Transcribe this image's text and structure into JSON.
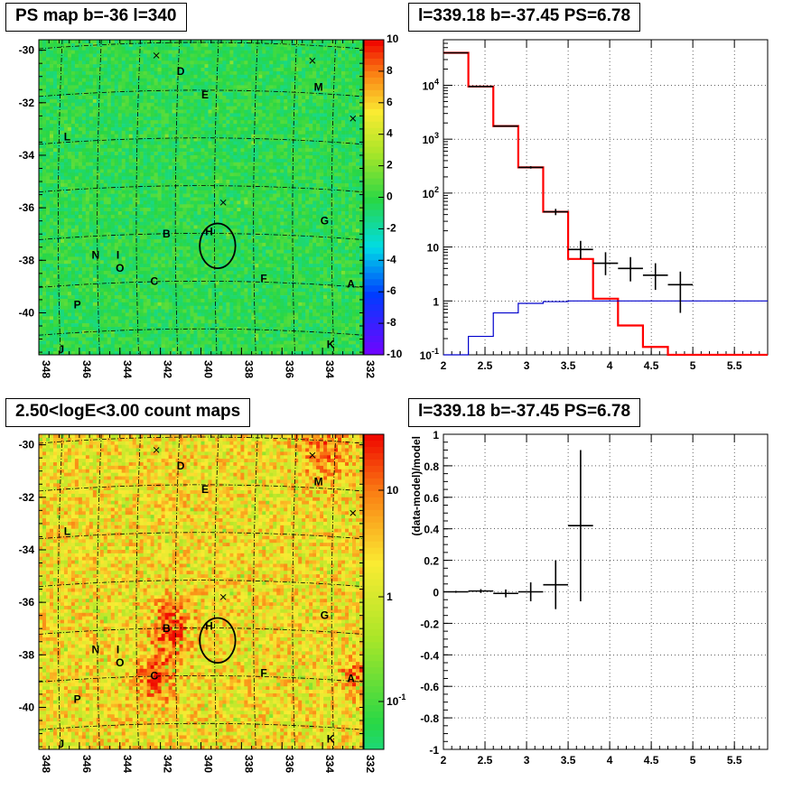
{
  "panels": {
    "top_left_title": "PS map b=-36 l=340",
    "top_right_title": "l=339.18 b=-37.45 PS=6.78",
    "bottom_left_title": "2.50<logE<3.00 count maps",
    "bottom_right_title": "l=339.18 b=-37.45 PS=6.78"
  },
  "chart_data": [
    {
      "type": "heatmap",
      "title": "PS map b=-36 l=340",
      "xlim": [
        348,
        332
      ],
      "ylim": [
        -41.6,
        -29.6
      ],
      "x_ticks": [
        "348",
        "346",
        "344",
        "342",
        "340",
        "338",
        "336",
        "334",
        "332"
      ],
      "y_ticks": [
        "-30",
        "-32",
        "-34",
        "-36",
        "-38",
        "-40"
      ],
      "colorbar_ticks": [
        "10",
        "8",
        "6",
        "4",
        "2",
        "0",
        "-2",
        "-4",
        "-6",
        "-8",
        "-10"
      ],
      "colorbar_range": [
        -10,
        10
      ],
      "source_labels": [
        {
          "text": "D",
          "l": 341.0,
          "b": -30.8
        },
        {
          "text": "E",
          "l": 339.8,
          "b": -31.7
        },
        {
          "text": "M",
          "l": 334.2,
          "b": -31.4
        },
        {
          "text": "L",
          "l": 346.6,
          "b": -33.3
        },
        {
          "text": "G",
          "l": 333.9,
          "b": -36.5
        },
        {
          "text": "B",
          "l": 341.7,
          "b": -37.0
        },
        {
          "text": "H",
          "l": 339.6,
          "b": -36.9
        },
        {
          "text": "N",
          "l": 345.2,
          "b": -37.8
        },
        {
          "text": "I",
          "l": 344.1,
          "b": -37.8
        },
        {
          "text": "O",
          "l": 344.0,
          "b": -38.3
        },
        {
          "text": "C",
          "l": 342.3,
          "b": -38.8
        },
        {
          "text": "F",
          "l": 336.9,
          "b": -38.7
        },
        {
          "text": "A",
          "l": 332.6,
          "b": -38.9
        },
        {
          "text": "P",
          "l": 346.1,
          "b": -39.7
        },
        {
          "text": "K",
          "l": 333.6,
          "b": -41.2
        },
        {
          "text": "J",
          "l": 346.9,
          "b": -41.4
        }
      ],
      "crosses": [
        {
          "l": 342.2,
          "b": -30.2
        },
        {
          "l": 334.5,
          "b": -30.4
        },
        {
          "l": 332.5,
          "b": -32.6
        },
        {
          "l": 338.9,
          "b": -35.8
        }
      ],
      "circle": {
        "l": 339.18,
        "b": -37.45,
        "r_deg": 0.55
      },
      "colormap": "rainbow",
      "dominant_color": "#33d64a"
    },
    {
      "type": "line",
      "title": "l=339.18 b=-37.45 PS=6.78",
      "xlim": [
        2,
        5.9
      ],
      "ylim": [
        0.1,
        70000
      ],
      "yscale": "log",
      "x_ticks": [
        "2",
        "2.5",
        "3",
        "3.5",
        "4",
        "4.5",
        "5",
        "5.5"
      ],
      "y_ticks": [
        "10^-1",
        "1",
        "10",
        "10^2",
        "10^3",
        "10^4"
      ],
      "grid": true,
      "series": [
        {
          "color": "#ff0000",
          "style": "step",
          "edges": [
            2.0,
            2.3,
            2.6,
            2.9,
            3.2,
            3.5,
            3.8,
            4.1,
            4.4,
            4.7,
            5.0,
            5.3,
            5.6,
            5.9
          ],
          "values": [
            40000,
            9500,
            1750,
            300,
            45,
            6,
            1.1,
            0.35,
            0.14,
            0.1,
            0.1,
            0.1,
            0.1
          ]
        },
        {
          "color": "#0000cc",
          "style": "step",
          "edges": [
            2.0,
            2.3,
            2.6,
            2.9,
            3.2,
            3.5,
            3.8,
            4.1,
            4.4,
            4.7,
            5.0,
            5.3,
            5.6,
            5.9
          ],
          "values": [
            0.1,
            0.22,
            0.6,
            0.9,
            0.97,
            1.0,
            1.0,
            1.0,
            1.0,
            1.0,
            1.0,
            1.0,
            1.0
          ]
        },
        {
          "color": "#000000",
          "style": "errorbar",
          "points": [
            {
              "x": 2.15,
              "y": 40000,
              "xerr": 0.15,
              "ylo": 39500,
              "yhi": 40500
            },
            {
              "x": 2.45,
              "y": 9500,
              "xerr": 0.15,
              "ylo": 9300,
              "yhi": 9700
            },
            {
              "x": 2.75,
              "y": 1750,
              "xerr": 0.15,
              "ylo": 1700,
              "yhi": 1800
            },
            {
              "x": 3.05,
              "y": 300,
              "xerr": 0.15,
              "ylo": 285,
              "yhi": 315
            },
            {
              "x": 3.35,
              "y": 45,
              "xerr": 0.15,
              "ylo": 39,
              "yhi": 51
            },
            {
              "x": 3.65,
              "y": 9,
              "xerr": 0.15,
              "ylo": 6,
              "yhi": 13
            },
            {
              "x": 3.95,
              "y": 5,
              "xerr": 0.15,
              "ylo": 3,
              "yhi": 8
            },
            {
              "x": 4.25,
              "y": 4,
              "xerr": 0.15,
              "ylo": 2.3,
              "yhi": 6.5
            },
            {
              "x": 4.55,
              "y": 3,
              "xerr": 0.15,
              "ylo": 1.6,
              "yhi": 5
            },
            {
              "x": 4.85,
              "y": 2,
              "xerr": 0.15,
              "ylo": 0.6,
              "yhi": 3.5
            }
          ]
        }
      ]
    },
    {
      "type": "heatmap",
      "title": "2.50<logE<3.00 count maps",
      "xlim": [
        348,
        332
      ],
      "ylim": [
        -41.6,
        -29.6
      ],
      "x_ticks": [
        "348",
        "346",
        "344",
        "342",
        "340",
        "338",
        "336",
        "334",
        "332"
      ],
      "y_ticks": [
        "-30",
        "-32",
        "-34",
        "-36",
        "-38",
        "-40"
      ],
      "colorbar_ticks": [
        "10",
        "1",
        "10^-1"
      ],
      "colorbar_scale": "log",
      "colormap": "rainbow",
      "dominant_color": "#f5b030"
    },
    {
      "type": "scatter",
      "title": "l=339.18 b=-37.45 PS=6.78",
      "ylabel": "(data-model)/model",
      "xlim": [
        2,
        5.9
      ],
      "ylim": [
        -1,
        1
      ],
      "x_ticks": [
        "2",
        "2.5",
        "3",
        "3.5",
        "4",
        "4.5",
        "5",
        "5.5"
      ],
      "y_ticks": [
        "1",
        "0.8",
        "0.6",
        "0.4",
        "0.2",
        "0",
        "-0.2",
        "-0.4",
        "-0.6",
        "-0.8",
        "-1"
      ],
      "grid": true,
      "points": [
        {
          "x": 2.15,
          "y": 0.0,
          "xerr": 0.15,
          "yerr": 0.006
        },
        {
          "x": 2.45,
          "y": 0.005,
          "xerr": 0.15,
          "yerr": 0.012
        },
        {
          "x": 2.75,
          "y": -0.01,
          "xerr": 0.15,
          "yerr": 0.025
        },
        {
          "x": 3.05,
          "y": 0.0,
          "xerr": 0.15,
          "yerr": 0.06
        },
        {
          "x": 3.35,
          "y": 0.045,
          "xerr": 0.15,
          "yerr": 0.155
        },
        {
          "x": 3.65,
          "y": 0.42,
          "xerr": 0.15,
          "yerr": 0.48
        }
      ]
    }
  ]
}
